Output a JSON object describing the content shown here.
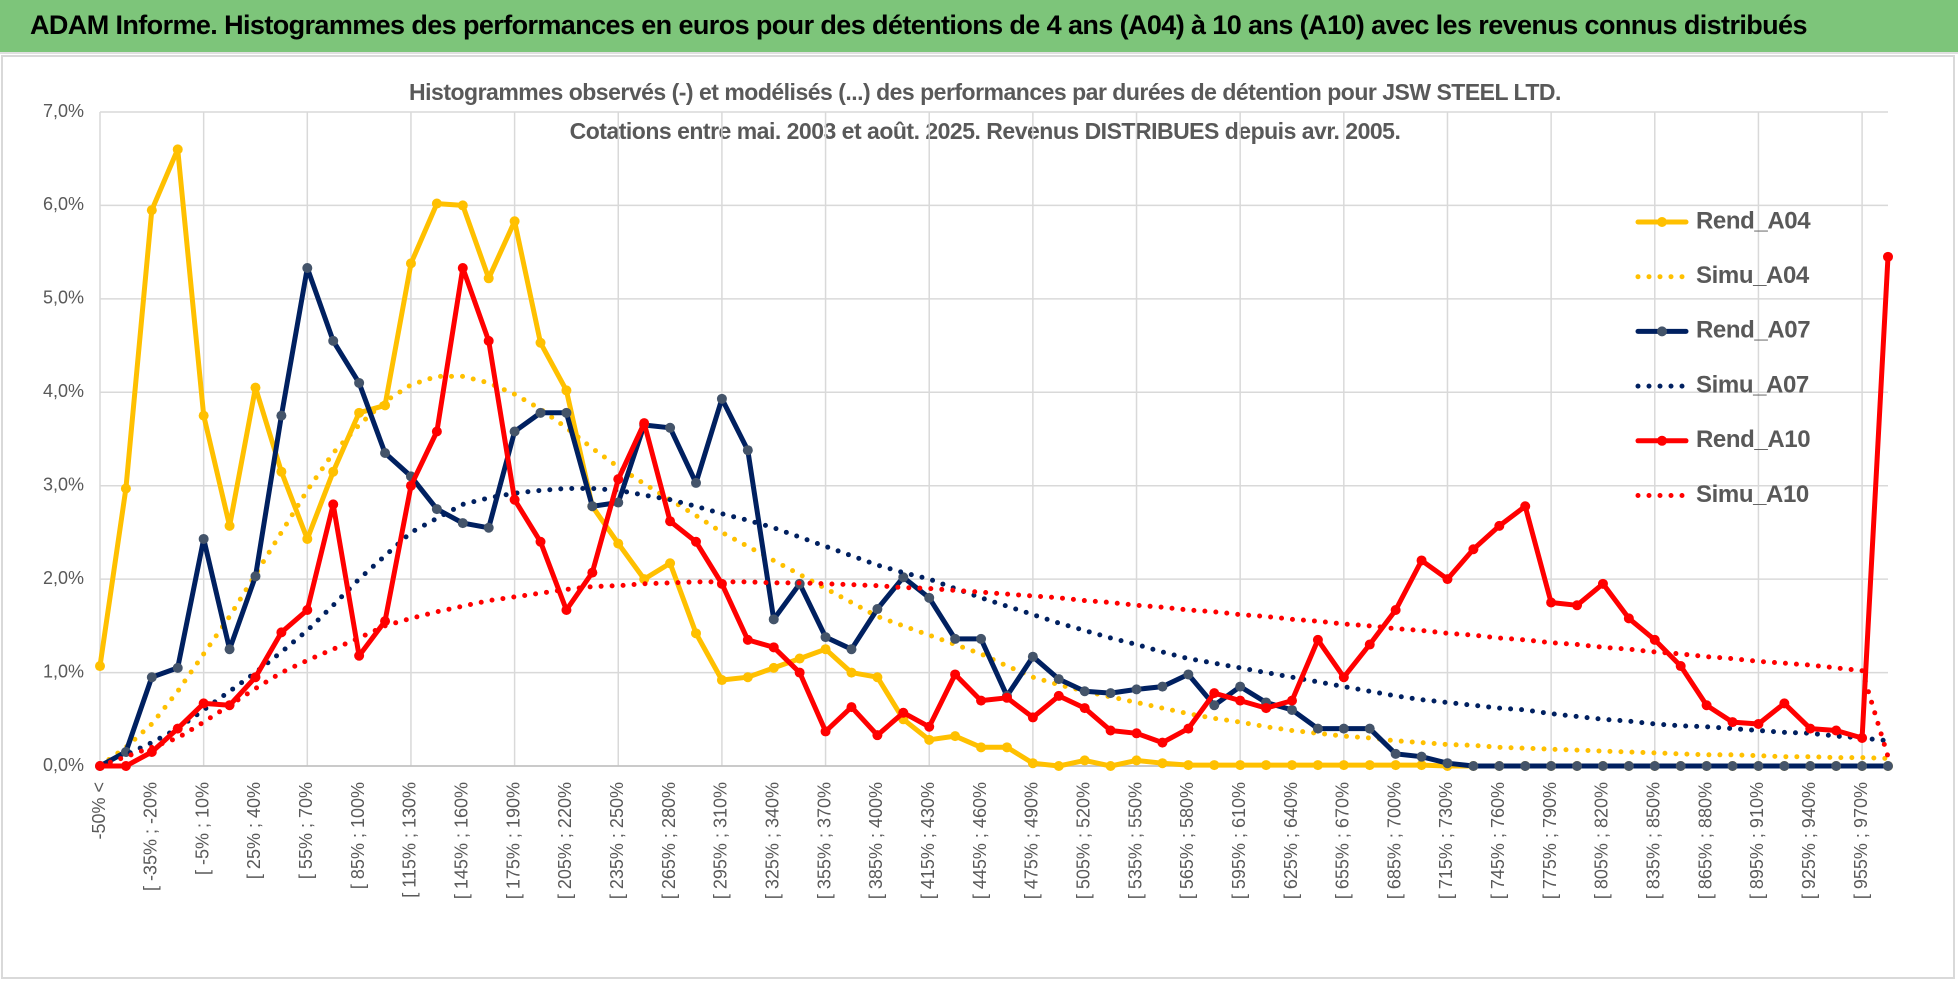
{
  "header": {
    "title": "ADAM Informe. Histogrammes des performances en euros pour des détentions de 4 ans (A04) à 10 ans (A10) avec les revenus connus distribués"
  },
  "chart_data": {
    "type": "line",
    "title": "Histogrammes observés (-) et modélisés (...) des performances par durées de détention pour JSW STEEL LTD.",
    "subtitle": "Cotations entre mai. 2003 et août. 2025.  Revenus DISTRIBUES depuis avr. 2005.",
    "categories": [
      "-50% <",
      null,
      "[ -35% ; -20%",
      null,
      "[ -5% ; 10%",
      null,
      "[ 25% ; 40%",
      null,
      "[ 55% ; 70%",
      null,
      "[ 85% ; 100%",
      null,
      "[ 115% ; 130%",
      null,
      "[ 145% ; 160%",
      null,
      "[ 175% ; 190%",
      null,
      "[ 205% ; 220%",
      null,
      "[ 235% ; 250%",
      null,
      "[ 265% ; 280%",
      null,
      "[ 295% ; 310%",
      null,
      "[ 325% ; 340%",
      null,
      "[ 355% ; 370%",
      null,
      "[ 385% ; 400%",
      null,
      "[ 415% ; 430%",
      null,
      "[ 445% ; 460%",
      null,
      "[ 475% ; 490%",
      null,
      "[ 505% ; 520%",
      null,
      "[ 535% ; 550%",
      null,
      "[ 565% ; 580%",
      null,
      "[ 595% ; 610%",
      null,
      "[ 625% ; 640%",
      null,
      "[ 655% ; 670%",
      null,
      "[ 685% ; 700%",
      null,
      "[ 715% ; 730%",
      null,
      "[ 745% ; 760%",
      null,
      "[ 775% ; 790%",
      null,
      "[ 805% ; 820%",
      null,
      "[ 835% ; 850%",
      null,
      "[ 865% ; 880%",
      null,
      "[ 895% ; 910%",
      null,
      "[ 925% ; 940%",
      null,
      "[ 955% ; 970%",
      null
    ],
    "series": [
      {
        "name": "Rend_A04",
        "color": "#ffc000",
        "style": "solid",
        "values": [
          1.07,
          2.97,
          5.95,
          6.6,
          3.75,
          2.57,
          4.05,
          3.15,
          2.43,
          3.15,
          3.78,
          3.86,
          5.38,
          6.02,
          6.0,
          5.22,
          5.83,
          4.53,
          4.02,
          2.78,
          2.38,
          2.0,
          2.17,
          1.42,
          0.92,
          0.95,
          1.05,
          1.15,
          1.25,
          1.0,
          0.95,
          0.5,
          0.28,
          0.32,
          0.2,
          0.2,
          0.03,
          0.0,
          0.06,
          0.0,
          0.06,
          0.03,
          0.01,
          0.01,
          0.01,
          0.01,
          0.01,
          0.01,
          0.01,
          0.01,
          0.01,
          0.01,
          0,
          0,
          0,
          0,
          0,
          0,
          0,
          0,
          0,
          0,
          0,
          0,
          0,
          0,
          0,
          0,
          0,
          0
        ]
      },
      {
        "name": "Simu_A04",
        "color": "#ffc000",
        "style": "dotted",
        "values": [
          0.0,
          0.2,
          0.45,
          0.8,
          1.2,
          1.6,
          2.05,
          2.5,
          2.95,
          3.35,
          3.65,
          3.9,
          4.08,
          4.17,
          4.17,
          4.1,
          3.98,
          3.82,
          3.62,
          3.4,
          3.2,
          3.02,
          2.85,
          2.68,
          2.5,
          2.35,
          2.2,
          2.05,
          1.9,
          1.75,
          1.6,
          1.5,
          1.4,
          1.3,
          1.2,
          1.07,
          0.95,
          0.87,
          0.8,
          0.74,
          0.68,
          0.62,
          0.56,
          0.51,
          0.47,
          0.42,
          0.38,
          0.35,
          0.32,
          0.3,
          0.27,
          0.25,
          0.23,
          0.22,
          0.2,
          0.19,
          0.18,
          0.17,
          0.16,
          0.15,
          0.14,
          0.13,
          0.12,
          0.12,
          0.11,
          0.1,
          0.1,
          0.09,
          0.09,
          0.08
        ]
      },
      {
        "name": "Rend_A07",
        "color": "#002060",
        "marker_color": "#44546a",
        "style": "solid",
        "values": [
          0,
          0.15,
          0.95,
          1.05,
          2.43,
          1.25,
          2.03,
          3.75,
          5.33,
          4.55,
          4.1,
          3.35,
          3.1,
          2.75,
          2.6,
          2.55,
          3.58,
          3.78,
          3.78,
          2.78,
          2.82,
          3.65,
          3.62,
          3.03,
          3.93,
          3.38,
          1.57,
          1.95,
          1.38,
          1.25,
          1.68,
          2.02,
          1.8,
          1.36,
          1.36,
          0.75,
          1.17,
          0.93,
          0.8,
          0.78,
          0.82,
          0.85,
          0.98,
          0.65,
          0.85,
          0.68,
          0.6,
          0.4,
          0.4,
          0.4,
          0.13,
          0.1,
          0.03,
          0,
          0,
          0,
          0,
          0,
          0,
          0,
          0,
          0,
          0,
          0,
          0,
          0,
          0,
          0,
          0,
          0
        ]
      },
      {
        "name": "Simu_A07",
        "color": "#002060",
        "style": "dotted",
        "values": [
          0,
          0.12,
          0.25,
          0.4,
          0.6,
          0.8,
          1.0,
          1.22,
          1.45,
          1.72,
          2.0,
          2.25,
          2.5,
          2.65,
          2.8,
          2.87,
          2.92,
          2.95,
          2.97,
          2.97,
          2.95,
          2.9,
          2.85,
          2.78,
          2.7,
          2.63,
          2.55,
          2.45,
          2.35,
          2.25,
          2.15,
          2.07,
          2.0,
          1.9,
          1.8,
          1.71,
          1.62,
          1.53,
          1.45,
          1.37,
          1.3,
          1.22,
          1.15,
          1.1,
          1.05,
          1.0,
          0.95,
          0.9,
          0.85,
          0.8,
          0.75,
          0.71,
          0.68,
          0.65,
          0.62,
          0.6,
          0.56,
          0.53,
          0.5,
          0.48,
          0.45,
          0.43,
          0.42,
          0.4,
          0.38,
          0.36,
          0.35,
          0.32,
          0.3,
          0.27
        ]
      },
      {
        "name": "Rend_A10",
        "color": "#ff0000",
        "style": "solid",
        "values": [
          0,
          0,
          0.15,
          0.4,
          0.67,
          0.65,
          0.95,
          1.43,
          1.67,
          2.8,
          1.18,
          1.55,
          3.0,
          3.58,
          5.33,
          4.55,
          2.85,
          2.4,
          1.67,
          2.07,
          3.07,
          3.67,
          2.62,
          2.4,
          1.95,
          1.35,
          1.27,
          1.0,
          0.37,
          0.63,
          0.33,
          0.57,
          0.42,
          0.98,
          0.7,
          0.73,
          0.52,
          0.75,
          0.62,
          0.38,
          0.35,
          0.25,
          0.4,
          0.78,
          0.7,
          0.62,
          0.7,
          1.35,
          0.95,
          1.3,
          1.67,
          2.2,
          2.0,
          2.32,
          2.57,
          2.78,
          1.75,
          1.72,
          1.95,
          1.58,
          1.35,
          1.07,
          0.65,
          0.47,
          0.45,
          0.67,
          0.4,
          0.38,
          0.3,
          5.45
        ]
      },
      {
        "name": "Simu_A10",
        "color": "#ff0000",
        "style": "dotted",
        "values": [
          0,
          0.1,
          0.2,
          0.3,
          0.47,
          0.65,
          0.83,
          1.0,
          1.13,
          1.25,
          1.37,
          1.5,
          1.58,
          1.65,
          1.71,
          1.77,
          1.81,
          1.85,
          1.89,
          1.92,
          1.93,
          1.95,
          1.96,
          1.97,
          1.97,
          1.97,
          1.96,
          1.96,
          1.95,
          1.94,
          1.93,
          1.91,
          1.9,
          1.88,
          1.86,
          1.84,
          1.82,
          1.8,
          1.77,
          1.75,
          1.72,
          1.7,
          1.67,
          1.65,
          1.62,
          1.6,
          1.57,
          1.55,
          1.52,
          1.5,
          1.47,
          1.45,
          1.42,
          1.4,
          1.37,
          1.35,
          1.32,
          1.3,
          1.27,
          1.25,
          1.22,
          1.2,
          1.17,
          1.15,
          1.12,
          1.1,
          1.08,
          1.05,
          1.02,
          0.1
        ]
      }
    ],
    "ylim": [
      0,
      7
    ],
    "yticks": [
      {
        "value": 0,
        "label": "0,0%"
      },
      {
        "value": 1,
        "label": "1,0%"
      },
      {
        "value": 2,
        "label": "2,0%"
      },
      {
        "value": 3,
        "label": "3,0%"
      },
      {
        "value": 4,
        "label": "4,0%"
      },
      {
        "value": 5,
        "label": "5,0%"
      },
      {
        "value": 6,
        "label": "6,0%"
      },
      {
        "value": 7,
        "label": "7,0%"
      }
    ],
    "grid": true,
    "legend": "right"
  }
}
